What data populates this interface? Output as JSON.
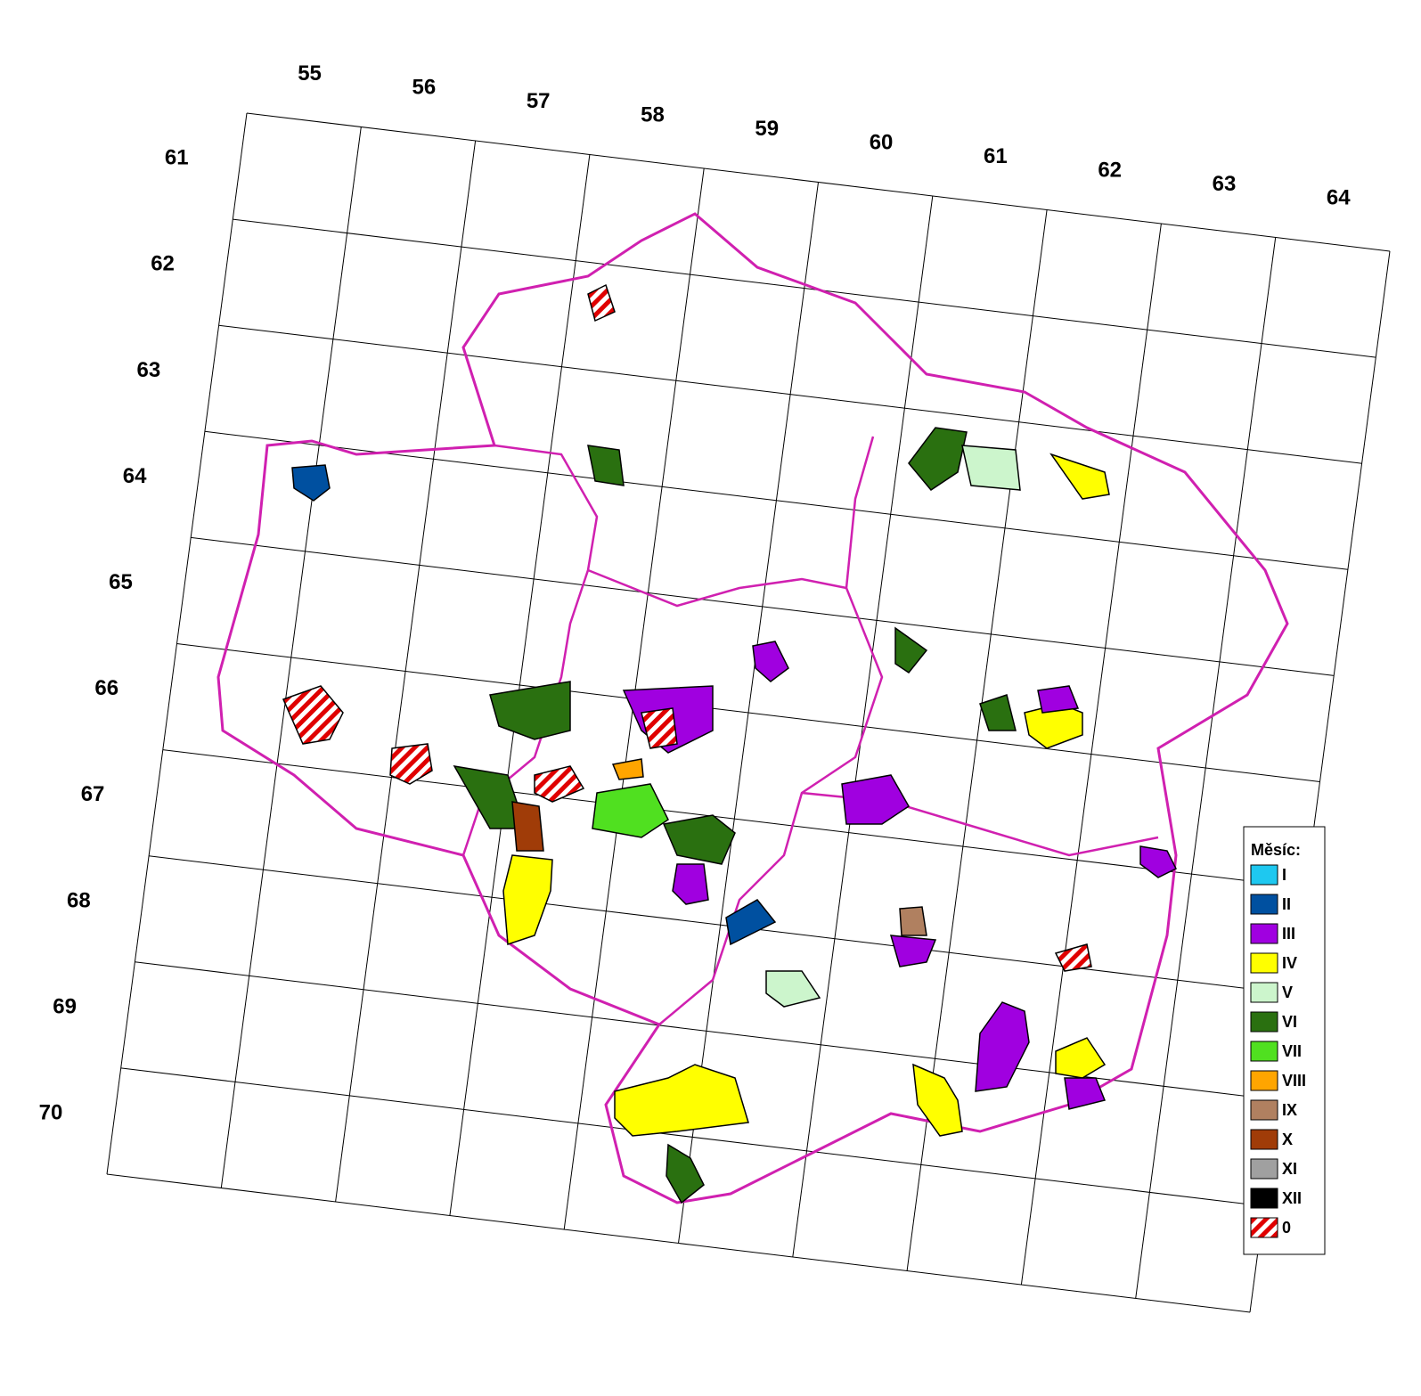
{
  "map": {
    "column_labels": [
      55,
      56,
      57,
      58,
      59,
      60,
      61,
      62,
      63,
      64
    ],
    "row_labels": [
      61,
      62,
      63,
      64,
      65,
      66,
      67,
      68,
      69,
      70
    ],
    "legend": {
      "title": "Měsíc:",
      "items": [
        {
          "label": "I",
          "color": "#1ec8f0"
        },
        {
          "label": "II",
          "color": "#0050a0"
        },
        {
          "label": "III",
          "color": "#a000e0"
        },
        {
          "label": "IV",
          "color": "#ffff00"
        },
        {
          "label": "V",
          "color": "#ccf5cc"
        },
        {
          "label": "VI",
          "color": "#2a7010"
        },
        {
          "label": "VII",
          "color": "#50e020"
        },
        {
          "label": "VIII",
          "color": "#ffa500"
        },
        {
          "label": "IX",
          "color": "#b08060"
        },
        {
          "label": "X",
          "color": "#a03c08"
        },
        {
          "label": "XI",
          "color": "#a0a0a0"
        },
        {
          "label": "XII",
          "color": "#000000"
        },
        {
          "label": "0",
          "color": "#e00000",
          "pattern": "hatch"
        }
      ]
    }
  }
}
